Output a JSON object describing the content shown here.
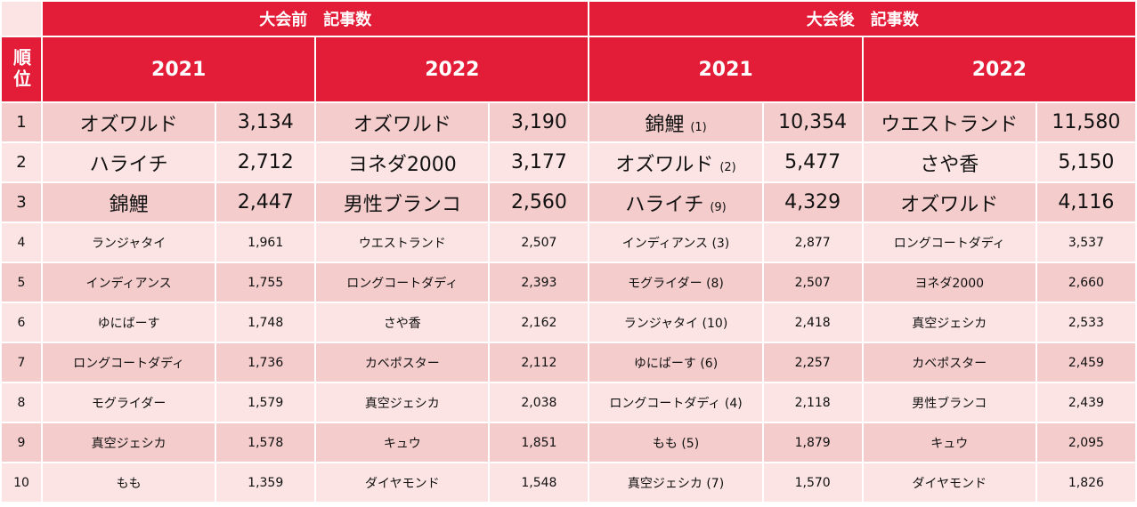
{
  "table": {
    "rank_header": "順位",
    "ranks": [
      1,
      2,
      3,
      4,
      5,
      6,
      7,
      8,
      9,
      10
    ],
    "groups": [
      {
        "title": "大会前　記事数",
        "years": [
          {
            "year": "2021",
            "rows": [
              {
                "name": "オズワルド",
                "count": "3,134"
              },
              {
                "name": "ハライチ",
                "count": "2,712"
              },
              {
                "name": "錦鯉",
                "count": "2,447"
              },
              {
                "name": "ランジャタイ",
                "count": "1,961"
              },
              {
                "name": "インディアンス",
                "count": "1,755"
              },
              {
                "name": "ゆにばーす",
                "count": "1,748"
              },
              {
                "name": "ロングコートダディ",
                "count": "1,736"
              },
              {
                "name": "モグライダー",
                "count": "1,579"
              },
              {
                "name": "真空ジェシカ",
                "count": "1,578"
              },
              {
                "name": "もも",
                "count": "1,359"
              }
            ]
          },
          {
            "year": "2022",
            "rows": [
              {
                "name": "オズワルド",
                "count": "3,190"
              },
              {
                "name": "ヨネダ2000",
                "count": "3,177"
              },
              {
                "name": "男性ブランコ",
                "count": "2,560"
              },
              {
                "name": "ウエストランド",
                "count": "2,507"
              },
              {
                "name": "ロングコートダディ",
                "count": "2,393"
              },
              {
                "name": "さや香",
                "count": "2,162"
              },
              {
                "name": "カベポスター",
                "count": "2,112"
              },
              {
                "name": "真空ジェシカ",
                "count": "2,038"
              },
              {
                "name": "キュウ",
                "count": "1,851"
              },
              {
                "name": "ダイヤモンド",
                "count": "1,548"
              }
            ]
          }
        ]
      },
      {
        "title": "大会後　記事数",
        "years": [
          {
            "year": "2021",
            "rows": [
              {
                "name": "錦鯉",
                "note": "(1)",
                "count": "10,354"
              },
              {
                "name": "オズワルド",
                "note": "(2)",
                "count": "5,477"
              },
              {
                "name": "ハライチ",
                "note": "(9)",
                "count": "4,329"
              },
              {
                "name": "インディアンス",
                "note": "(3)",
                "count": "2,877"
              },
              {
                "name": "モグライダー",
                "note": "(8)",
                "count": "2,507"
              },
              {
                "name": "ランジャタイ",
                "note": "(10)",
                "count": "2,418"
              },
              {
                "name": "ゆにばーす",
                "note": "(6)",
                "count": "2,257"
              },
              {
                "name": "ロングコートダディ",
                "note": "(4)",
                "count": "2,118"
              },
              {
                "name": "もも",
                "note": "(5)",
                "count": "1,879"
              },
              {
                "name": "真空ジェシカ",
                "note": "(7)",
                "count": "1,570"
              }
            ]
          },
          {
            "year": "2022",
            "rows": [
              {
                "name": "ウエストランド",
                "count": "11,580"
              },
              {
                "name": "さや香",
                "count": "5,150"
              },
              {
                "name": "オズワルド",
                "count": "4,116"
              },
              {
                "name": "ロングコートダディ",
                "count": "3,537"
              },
              {
                "name": "ヨネダ2000",
                "count": "2,660"
              },
              {
                "name": "真空ジェシカ",
                "count": "2,533"
              },
              {
                "name": "カベポスター",
                "count": "2,459"
              },
              {
                "name": "男性ブランコ",
                "count": "2,439"
              },
              {
                "name": "キュウ",
                "count": "2,095"
              },
              {
                "name": "ダイヤモンド",
                "count": "1,826"
              }
            ]
          }
        ]
      }
    ]
  }
}
